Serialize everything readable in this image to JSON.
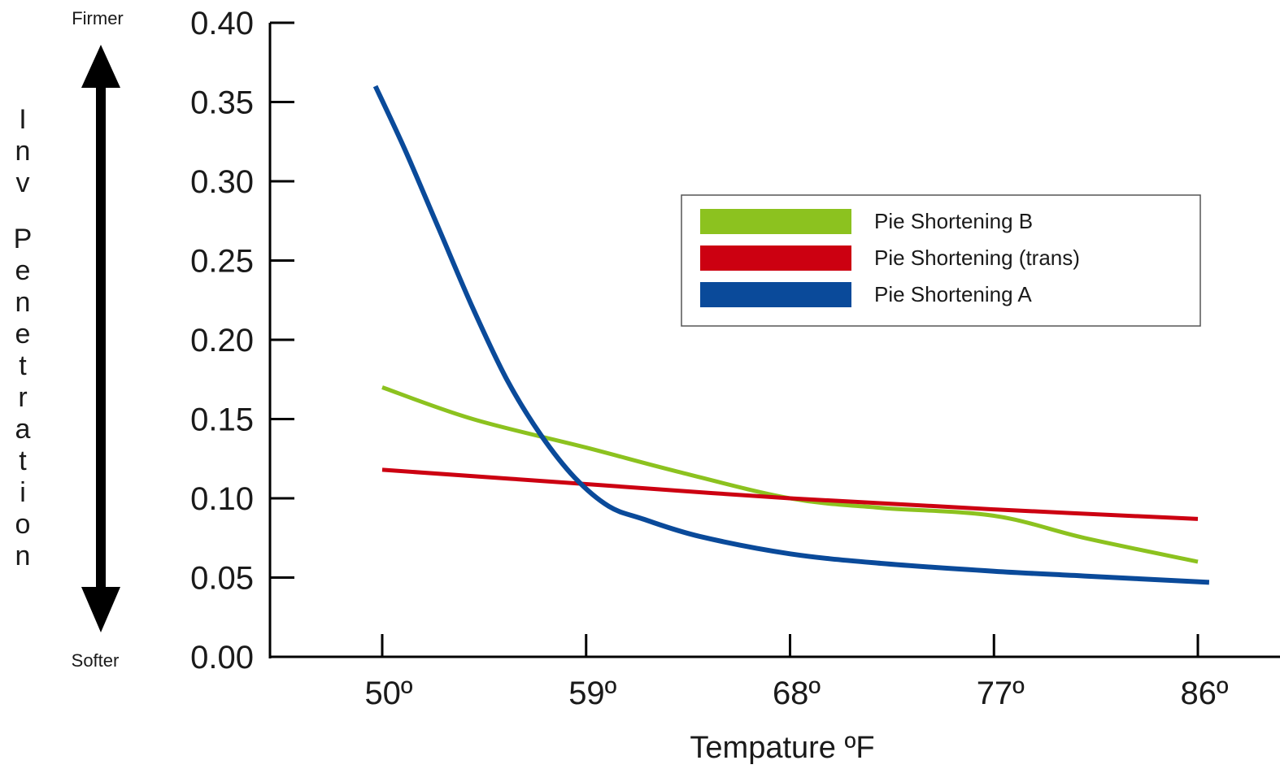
{
  "chart_data": {
    "type": "line",
    "xlabel": "Tempature ºF",
    "ylabel": "Inv Penetration",
    "ylabel_top": "Firmer",
    "ylabel_bottom": "Softer",
    "x_ticks": [
      50,
      59,
      68,
      77,
      86
    ],
    "x_tick_labels": [
      "50º",
      "59º",
      "68º",
      "77º",
      "86º"
    ],
    "y_ticks": [
      0.0,
      0.05,
      0.1,
      0.15,
      0.2,
      0.25,
      0.3,
      0.35,
      0.4
    ],
    "y_tick_labels": [
      "0.00",
      "0.05",
      "0.10",
      "0.15",
      "0.20",
      "0.25",
      "0.30",
      "0.35",
      "0.40"
    ],
    "xlim": [
      45,
      89
    ],
    "ylim": [
      0,
      0.4
    ],
    "grid": false,
    "legend_position": "top-right",
    "series": [
      {
        "name": "Pie Shortening B",
        "color": "#8cc21f",
        "x": [
          50,
          54,
          59,
          63,
          68,
          72,
          77,
          81,
          86
        ],
        "y": [
          0.17,
          0.15,
          0.132,
          0.117,
          0.1,
          0.094,
          0.089,
          0.075,
          0.06
        ]
      },
      {
        "name": "Pie Shortening (trans)",
        "color": "#cc0011",
        "x": [
          50,
          59,
          68,
          77,
          86
        ],
        "y": [
          0.118,
          0.109,
          0.1,
          0.093,
          0.087
        ]
      },
      {
        "name": "Pie Shortening A",
        "color": "#0a4a9a",
        "x": [
          49.7,
          51,
          52.5,
          54,
          55.5,
          57,
          58.5,
          60,
          61.5,
          64,
          68,
          72,
          77,
          81,
          86.5
        ],
        "y": [
          0.36,
          0.32,
          0.27,
          0.22,
          0.175,
          0.14,
          0.113,
          0.095,
          0.087,
          0.076,
          0.065,
          0.059,
          0.054,
          0.051,
          0.047
        ]
      }
    ]
  }
}
